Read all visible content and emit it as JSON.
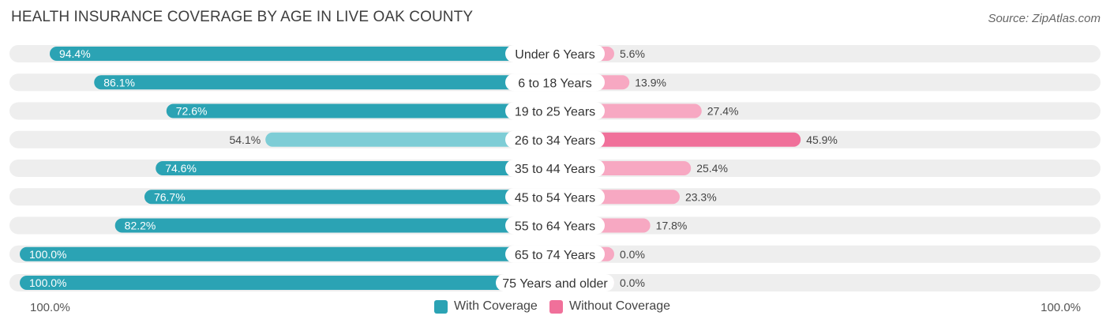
{
  "header": {
    "title": "HEALTH INSURANCE COVERAGE BY AGE IN LIVE OAK COUNTY",
    "source": "Source: ZipAtlas.com"
  },
  "colors": {
    "with_dark": "#2ba3b4",
    "with_light": "#7ecdd6",
    "without_dark": "#f0709a",
    "without_light": "#f7a8c2",
    "track": "#eeeeee",
    "label_bg": "#ffffff"
  },
  "legend": {
    "with_label": "With Coverage",
    "without_label": "Without Coverage"
  },
  "axis": {
    "left_label": "100.0%",
    "right_label": "100.0%"
  },
  "chart_data": {
    "type": "bar",
    "orientation": "diverging-horizontal",
    "title": "HEALTH INSURANCE COVERAGE BY AGE IN LIVE OAK COUNTY",
    "categories": [
      "Under 6 Years",
      "6 to 18 Years",
      "19 to 25 Years",
      "26 to 34 Years",
      "35 to 44 Years",
      "45 to 54 Years",
      "55 to 64 Years",
      "65 to 74 Years",
      "75 Years and older"
    ],
    "series": [
      {
        "name": "With Coverage",
        "values": [
          94.4,
          86.1,
          72.6,
          54.1,
          74.6,
          76.7,
          82.2,
          100.0,
          100.0
        ]
      },
      {
        "name": "Without Coverage",
        "values": [
          5.6,
          13.9,
          27.4,
          45.9,
          25.4,
          23.3,
          17.8,
          0.0,
          0.0
        ]
      }
    ],
    "value_labels": {
      "with": [
        "94.4%",
        "86.1%",
        "72.6%",
        "54.1%",
        "74.6%",
        "76.7%",
        "82.2%",
        "100.0%",
        "100.0%"
      ],
      "without": [
        "5.6%",
        "13.9%",
        "27.4%",
        "45.9%",
        "25.4%",
        "23.3%",
        "17.8%",
        "0.0%",
        "0.0%"
      ]
    },
    "xlim": [
      0,
      100
    ],
    "legend_position": "bottom-center"
  }
}
